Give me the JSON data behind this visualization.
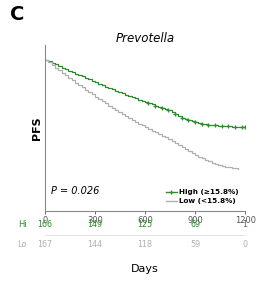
{
  "title": "Prevotella",
  "panel_label": "C",
  "ylabel": "PFS",
  "xlabel": "Days",
  "xlim": [
    0,
    1200
  ],
  "ylim": [
    0.3,
    1.04
  ],
  "xticks": [
    0,
    300,
    600,
    900,
    1200
  ],
  "p_value_text": "P = 0.026",
  "legend_high": "High (≥15.8%)",
  "legend_low": "Low (<15.8%)",
  "high_color": "#2e8b2e",
  "low_color": "#b0b0b0",
  "at_risk_hi": [
    166,
    149,
    125,
    69,
    1
  ],
  "at_risk_lo": [
    167,
    144,
    118,
    59,
    0
  ],
  "at_risk_times": [
    0,
    300,
    600,
    900,
    1200
  ],
  "high_x": [
    0,
    20,
    40,
    60,
    80,
    100,
    120,
    140,
    160,
    180,
    200,
    220,
    240,
    260,
    280,
    300,
    320,
    340,
    360,
    380,
    400,
    420,
    440,
    460,
    480,
    500,
    520,
    540,
    560,
    580,
    600,
    620,
    640,
    660,
    680,
    700,
    720,
    740,
    760,
    780,
    800,
    820,
    840,
    860,
    880,
    900,
    920,
    940,
    960,
    980,
    1000,
    1020,
    1040,
    1060,
    1080,
    1100,
    1120,
    1140,
    1160,
    1180,
    1200
  ],
  "high_y": [
    0.975,
    0.968,
    0.961,
    0.954,
    0.947,
    0.94,
    0.933,
    0.926,
    0.919,
    0.913,
    0.906,
    0.9,
    0.893,
    0.887,
    0.88,
    0.874,
    0.868,
    0.861,
    0.855,
    0.849,
    0.843,
    0.837,
    0.831,
    0.825,
    0.819,
    0.814,
    0.808,
    0.802,
    0.797,
    0.791,
    0.786,
    0.78,
    0.775,
    0.77,
    0.764,
    0.759,
    0.754,
    0.749,
    0.74,
    0.732,
    0.724,
    0.716,
    0.71,
    0.705,
    0.7,
    0.695,
    0.692,
    0.689,
    0.687,
    0.685,
    0.683,
    0.681,
    0.68,
    0.679,
    0.678,
    0.677,
    0.676,
    0.675,
    0.675,
    0.675,
    0.675
  ],
  "low_x": [
    0,
    20,
    40,
    60,
    80,
    100,
    120,
    140,
    160,
    180,
    200,
    220,
    240,
    260,
    280,
    300,
    320,
    340,
    360,
    380,
    400,
    420,
    440,
    460,
    480,
    500,
    520,
    540,
    560,
    580,
    600,
    620,
    640,
    660,
    680,
    700,
    720,
    740,
    760,
    780,
    800,
    820,
    840,
    860,
    880,
    900,
    920,
    940,
    960,
    980,
    1000,
    1020,
    1040,
    1060,
    1080,
    1100,
    1120,
    1140,
    1160
  ],
  "low_y": [
    0.975,
    0.963,
    0.952,
    0.94,
    0.929,
    0.917,
    0.906,
    0.895,
    0.884,
    0.873,
    0.862,
    0.851,
    0.841,
    0.83,
    0.82,
    0.81,
    0.8,
    0.79,
    0.78,
    0.77,
    0.761,
    0.751,
    0.742,
    0.733,
    0.724,
    0.715,
    0.706,
    0.697,
    0.689,
    0.681,
    0.673,
    0.665,
    0.657,
    0.65,
    0.642,
    0.635,
    0.628,
    0.621,
    0.611,
    0.601,
    0.592,
    0.583,
    0.574,
    0.565,
    0.557,
    0.549,
    0.541,
    0.534,
    0.527,
    0.521,
    0.515,
    0.51,
    0.505,
    0.501,
    0.497,
    0.494,
    0.491,
    0.489,
    0.487
  ],
  "censor_hi_times": [
    620,
    660,
    700,
    740,
    780,
    820,
    860,
    900,
    940,
    980,
    1020,
    1060,
    1100,
    1140,
    1180,
    1200
  ]
}
